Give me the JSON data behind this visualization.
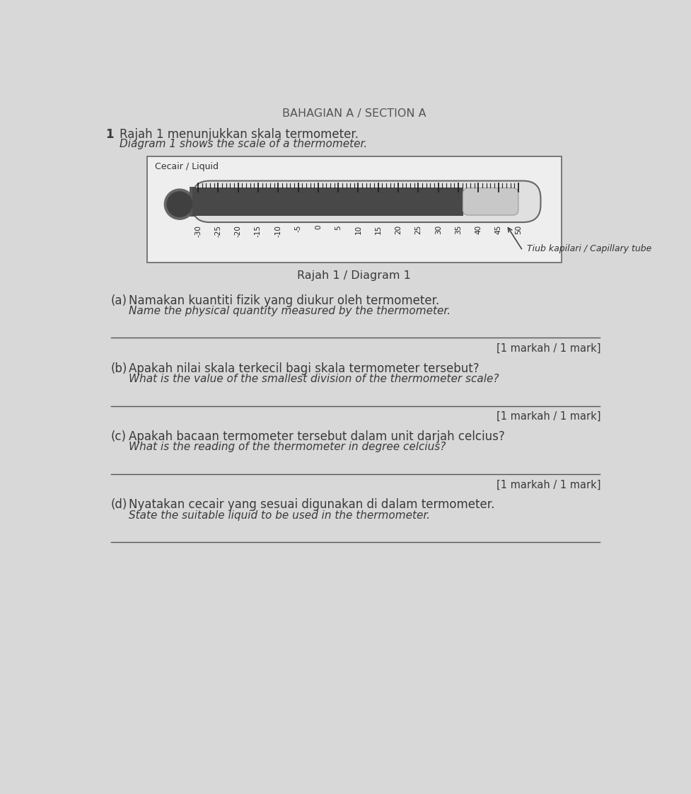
{
  "bg_color": "#d0d0d0",
  "paper_color": "#d8d8d8",
  "title": "BAHAGIAN A / SECTION A",
  "q_number": "1",
  "q1_ms": "Rajah 1 menunjukkan skala termometer.",
  "q1_en": "Diagram 1 shows the scale of a thermometer.",
  "diagram_label": "Rajah 1 / Diagram 1",
  "liquid_label": "Cecair / Liquid",
  "tube_label": "Tiub kapilari / Capillary tube",
  "scale_values": [
    -30,
    -25,
    -20,
    -15,
    -10,
    -5,
    0,
    5,
    10,
    15,
    20,
    25,
    30,
    35,
    40,
    45,
    50
  ],
  "mercury_reading": 36,
  "sub_questions": [
    {
      "letter": "(a)",
      "ms": "Namakan kuantiti fizik yang diukur oleh termometer.",
      "en": "Name the physical quantity measured by the thermometer.",
      "mark": "[1 markah / 1 mark]",
      "has_line": true
    },
    {
      "letter": "(b)",
      "ms": "Apakah nilai skala terkecil bagi skala termometer tersebut?",
      "en": "What is the value of the smallest division of the thermometer scale?",
      "mark": "[1 markah / 1 mark]",
      "has_line": true
    },
    {
      "letter": "(c)",
      "ms": "Apakah bacaan termometer tersebut dalam unit darjah celcius?",
      "en": "What is the reading of the thermometer in degree celcius?",
      "mark": "[1 markah / 1 mark]",
      "has_line": true
    },
    {
      "letter": "(d)",
      "ms": "Nyatakan cecair yang sesuai digunakan di dalam termometer.",
      "en": "State the suitable liquid to be used in the thermometer.",
      "mark": "",
      "has_line": false
    }
  ]
}
